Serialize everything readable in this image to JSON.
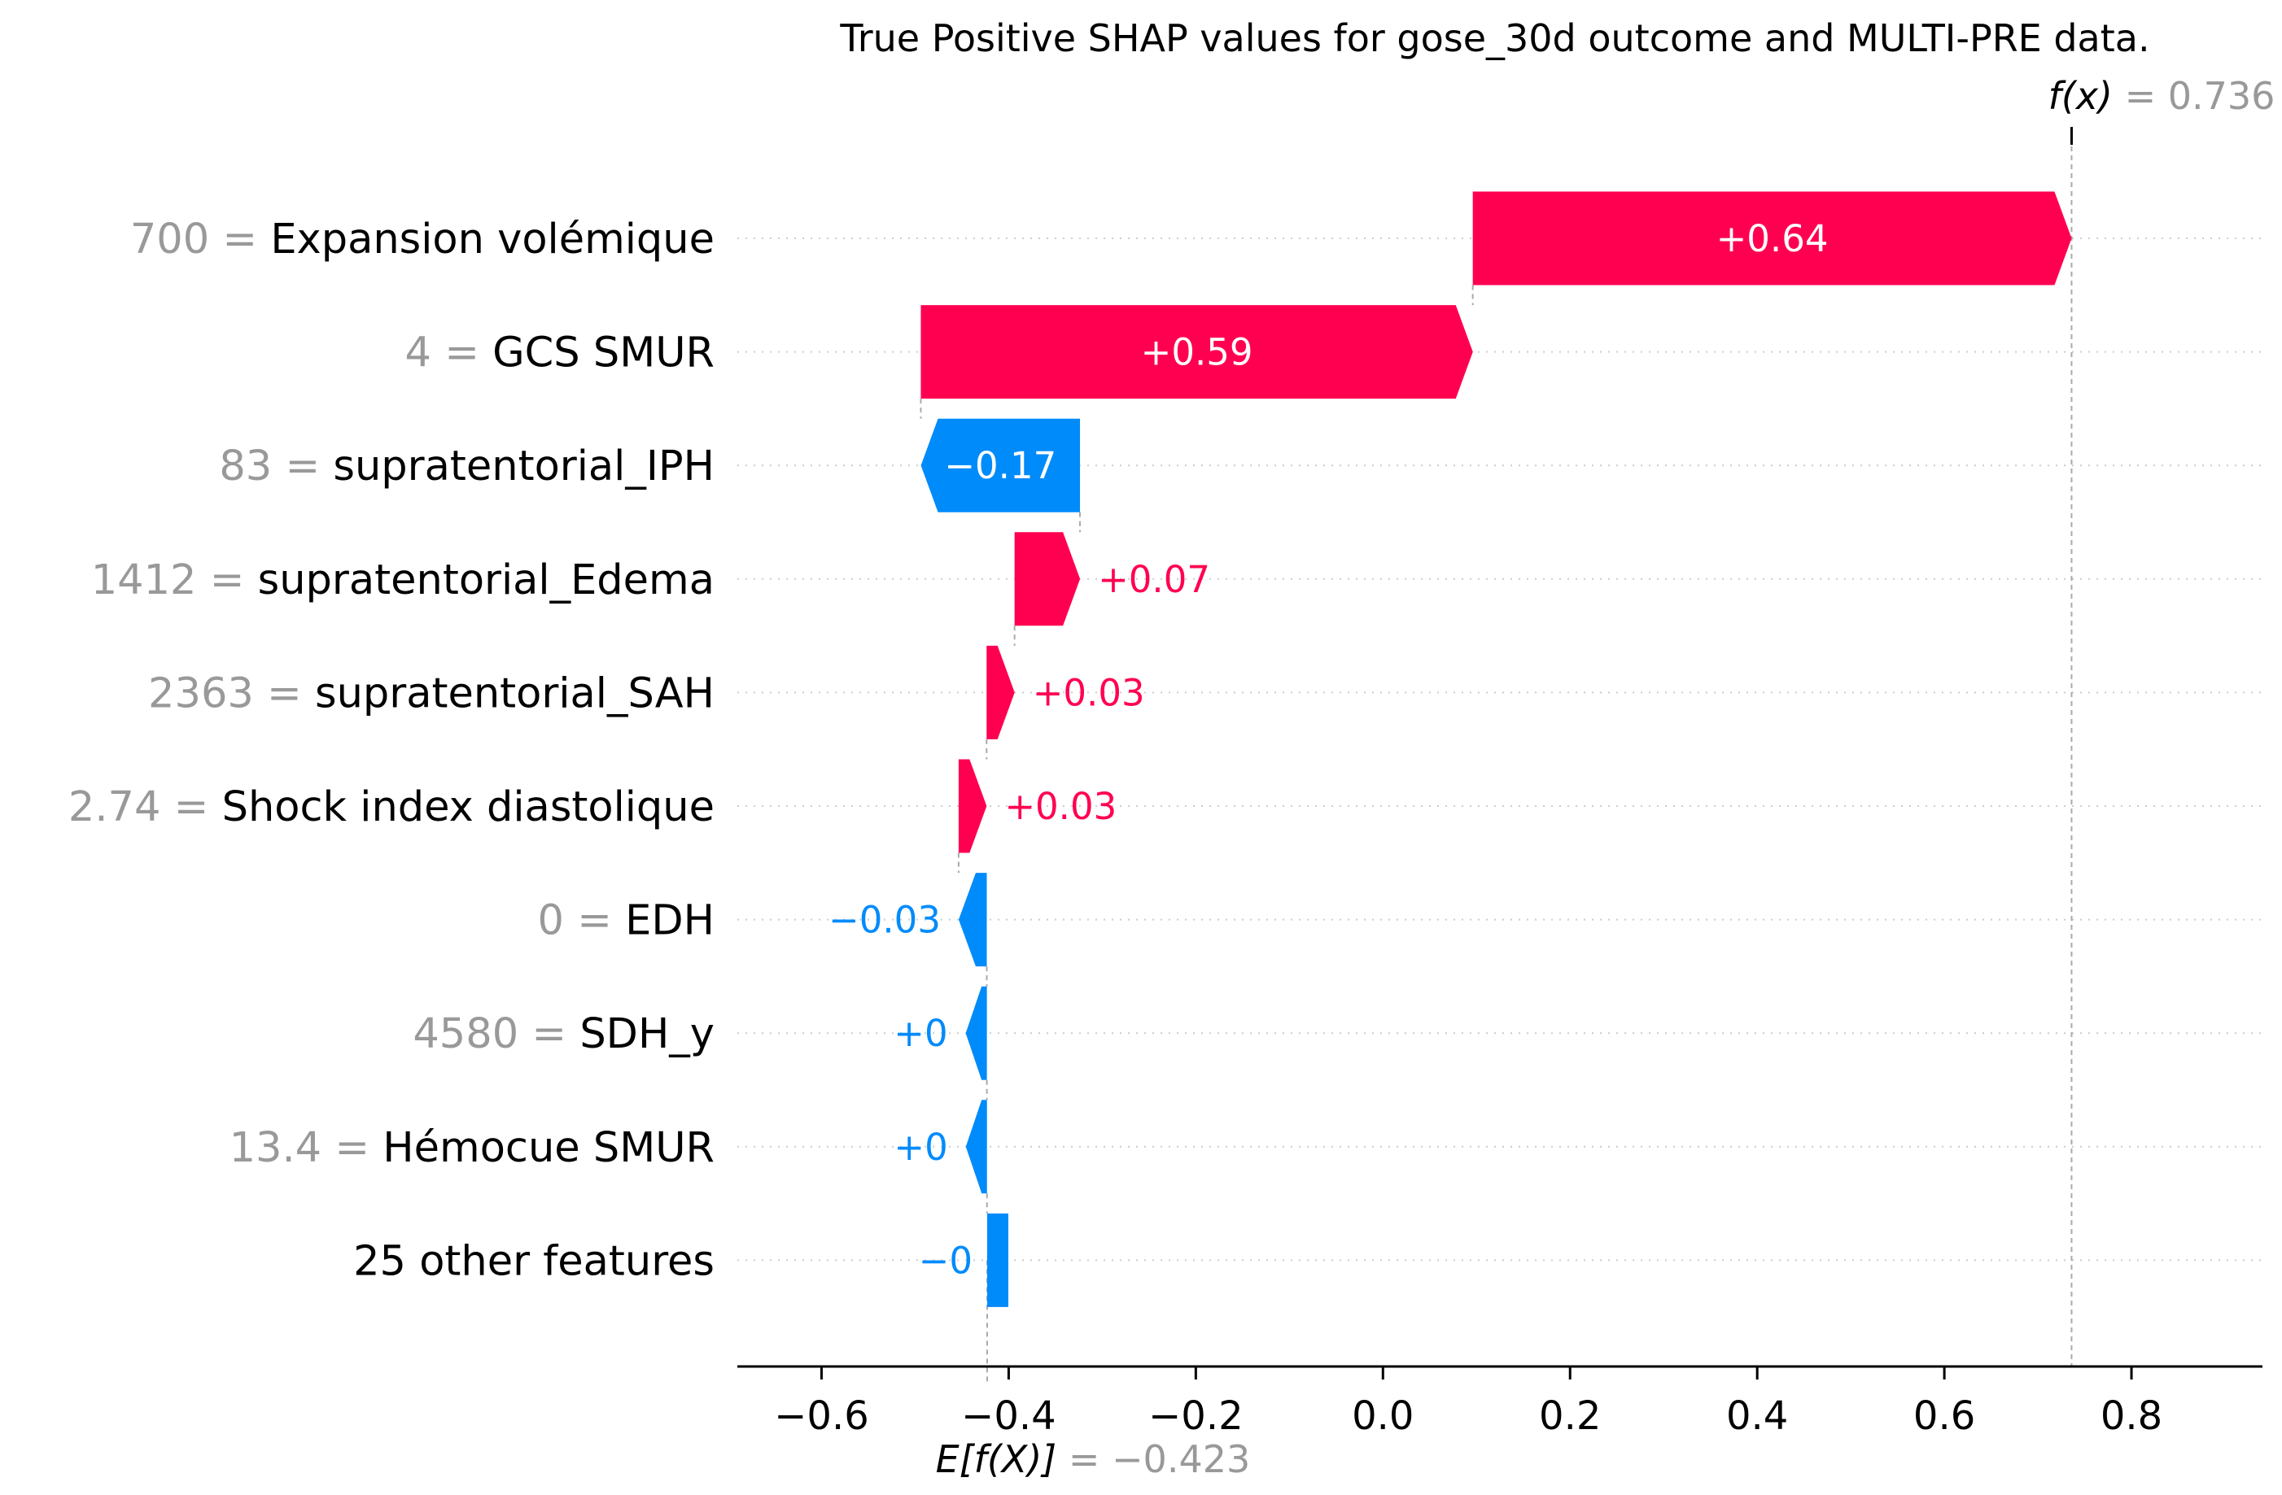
{
  "chart_data": {
    "type": "waterfall",
    "title": "True Positive SHAP values for gose_30d outcome and MULTI-PRE data.",
    "base_value": -0.423,
    "base_value_label": "−0.423",
    "final_value": 0.736,
    "final_value_label": "0.736",
    "fx_symbol": "f(x)",
    "ex_symbol": "E[f(X)]",
    "xlim": [
      -0.69,
      0.94
    ],
    "xticks": [
      -0.6,
      -0.4,
      -0.2,
      0.0,
      0.2,
      0.4,
      0.6,
      0.8
    ],
    "xtick_labels": [
      "−0.6",
      "−0.4",
      "−0.2",
      "0.0",
      "0.2",
      "0.4",
      "0.6",
      "0.8"
    ],
    "colors": {
      "positive": "#ff0051",
      "negative": "#008bfb",
      "feature_value": "#999999",
      "gridline": "#cccccc"
    },
    "features": [
      {
        "value_text": "700",
        "name": "Expansion volémique",
        "shap": 0.64,
        "label": "+0.64"
      },
      {
        "value_text": "4",
        "name": "GCS SMUR",
        "shap": 0.59,
        "label": "+0.59"
      },
      {
        "value_text": "83",
        "name": "supratentorial_IPH",
        "shap": -0.17,
        "label": "−0.17"
      },
      {
        "value_text": "1412",
        "name": "supratentorial_Edema",
        "shap": 0.07,
        "label": "+0.07"
      },
      {
        "value_text": "2363",
        "name": "supratentorial_SAH",
        "shap": 0.03,
        "label": "+0.03"
      },
      {
        "value_text": "2.74",
        "name": "Shock index diastolique",
        "shap": 0.03,
        "label": "+0.03"
      },
      {
        "value_text": "0",
        "name": "EDH",
        "shap": -0.03,
        "label": "−0.03"
      },
      {
        "value_text": "4580",
        "name": "SDH_y",
        "shap": 0.0,
        "label": "+0"
      },
      {
        "value_text": "13.4",
        "name": "Hémocue SMUR",
        "shap": 0.0,
        "label": "+0"
      },
      {
        "value_text": "",
        "name": "25 other features",
        "shap": -0.0,
        "label": "−0"
      }
    ]
  }
}
